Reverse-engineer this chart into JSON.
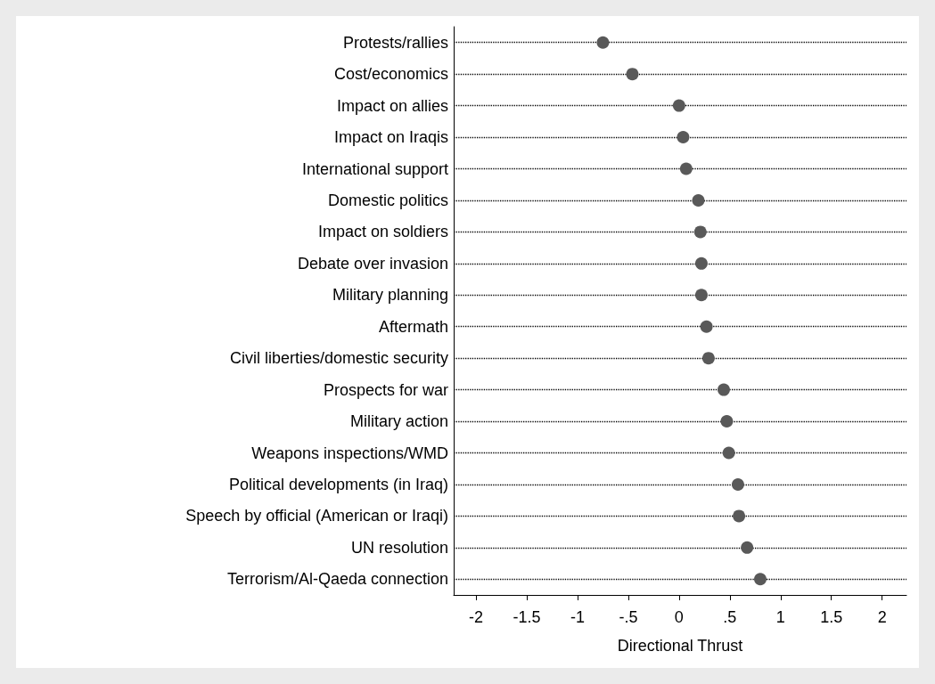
{
  "chart_data": {
    "type": "scatter",
    "xlabel": "Directional Thrust",
    "categories": [
      "Protests/rallies",
      "Cost/economics",
      "Impact on allies",
      "Impact on Iraqis",
      "International support",
      "Domestic politics",
      "Impact on soldiers",
      "Debate over invasion",
      "Military planning",
      "Aftermath",
      "Civil liberties/domestic security",
      "Prospects for war",
      "Military action",
      "Weapons inspections/WMD",
      "Political developments (in Iraq)",
      "Speech by official (American or Iraqi)",
      "UN resolution",
      "Terrorism/Al-Qaeda connection"
    ],
    "series": [
      {
        "color": "#595959",
        "values": [
          -0.75,
          -0.46,
          0.0,
          0.04,
          0.07,
          0.19,
          0.21,
          0.22,
          0.22,
          0.27,
          0.29,
          0.44,
          0.47,
          0.49,
          0.58,
          0.59,
          0.67,
          0.8
        ]
      }
    ],
    "orientation": "horizontal",
    "xlim": [
      -2.22,
      2.24
    ],
    "xticks": [
      -2,
      -1.5,
      -1,
      {
        "value": -0.5,
        "label": "-.5"
      },
      0,
      {
        "value": 0.5,
        "label": ".5"
      },
      1,
      1.5,
      2
    ],
    "grid": "y",
    "marker": "circle"
  }
}
